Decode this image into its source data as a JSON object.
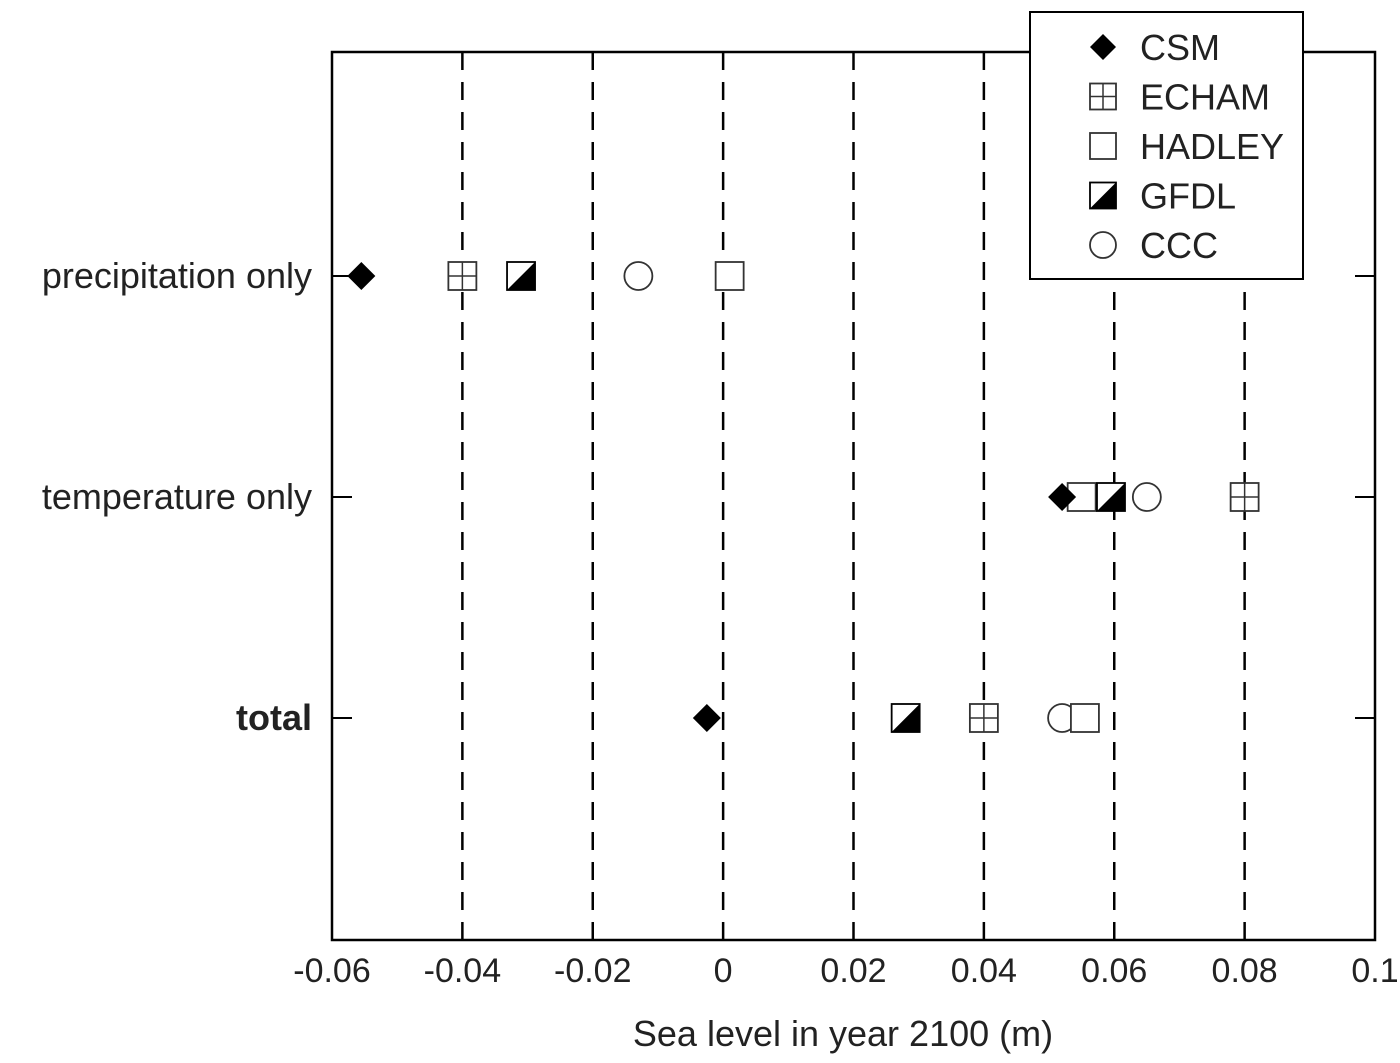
{
  "chart_data": {
    "type": "scatter",
    "xlabel": "Sea level in year 2100 (m)",
    "ylabel": "",
    "xlim": [
      -0.06,
      0.1
    ],
    "xticks": [
      -0.06,
      -0.04,
      -0.02,
      0,
      0.02,
      0.04,
      0.06,
      0.08,
      0.1
    ],
    "xtick_labels": [
      "-0.06",
      "-0.04",
      "-0.02",
      "0",
      "0.02",
      "0.04",
      "0.06",
      "0.08",
      "0.1"
    ],
    "categories": [
      "precipitation only",
      "temperature only",
      "total"
    ],
    "bold_categories": [
      "total"
    ],
    "grid": "vertical dashed lines",
    "legend": "top-right",
    "series": [
      {
        "name": "CSM",
        "marker": "filled-diamond",
        "values": [
          -0.0555,
          0.052,
          -0.0025
        ]
      },
      {
        "name": "ECHAM",
        "marker": "square-cross",
        "values": [
          -0.04,
          0.08,
          0.04
        ]
      },
      {
        "name": "HADLEY",
        "marker": "open-square",
        "values": [
          0.001,
          0.055,
          0.0555
        ]
      },
      {
        "name": "GFDL",
        "marker": "half-filled-square",
        "values": [
          -0.031,
          0.0595,
          0.028
        ]
      },
      {
        "name": "CCC",
        "marker": "open-circle",
        "values": [
          -0.013,
          0.065,
          0.052
        ]
      }
    ]
  }
}
